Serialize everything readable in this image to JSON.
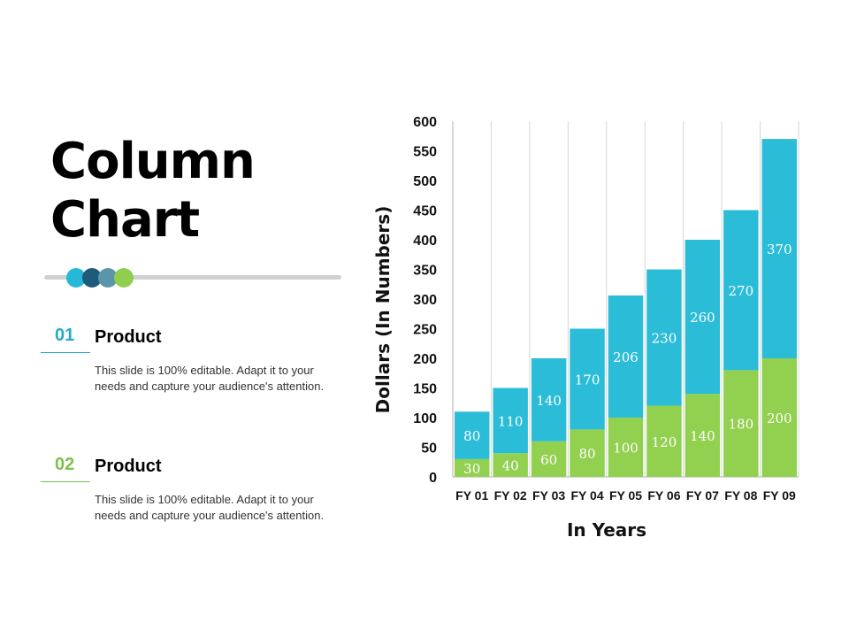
{
  "slide": {
    "title_line1": "Column",
    "title_line2": "Chart",
    "dots": [
      "#26b8d8",
      "#1e5a7a",
      "#5b95a8",
      "#8fce4f"
    ],
    "items": [
      {
        "number": "01",
        "number_color": "#26a9c9",
        "title": "Product",
        "desc_line1": "This slide is 100% editable. Adapt it to your",
        "desc_line2": "needs and capture your audience's attention."
      },
      {
        "number": "02",
        "number_color": "#7cc24b",
        "title": "Product",
        "desc_line1": "This slide is 100% editable. Adapt it to your",
        "desc_line2": "needs and capture your audience's attention."
      }
    ]
  },
  "chart_data": {
    "type": "bar",
    "stacked": true,
    "categories": [
      "FY 01",
      "FY 02",
      "FY 03",
      "FY 04",
      "FY 05",
      "FY 06",
      "FY 07",
      "FY 08",
      "FY 09"
    ],
    "series": [
      {
        "values": [
          30,
          40,
          60,
          80,
          100,
          120,
          140,
          180,
          200
        ],
        "color": "#92d050"
      },
      {
        "values": [
          80,
          110,
          140,
          170,
          206,
          230,
          260,
          270,
          370
        ],
        "color": "#2bbcd8"
      }
    ],
    "xlabel": "In Years",
    "ylabel": "Dollars (In Numbers)",
    "ylim": [
      0,
      600
    ],
    "yticks": [
      0,
      50,
      100,
      150,
      200,
      250,
      300,
      350,
      400,
      450,
      500,
      550,
      600
    ],
    "grid": "vertical"
  }
}
